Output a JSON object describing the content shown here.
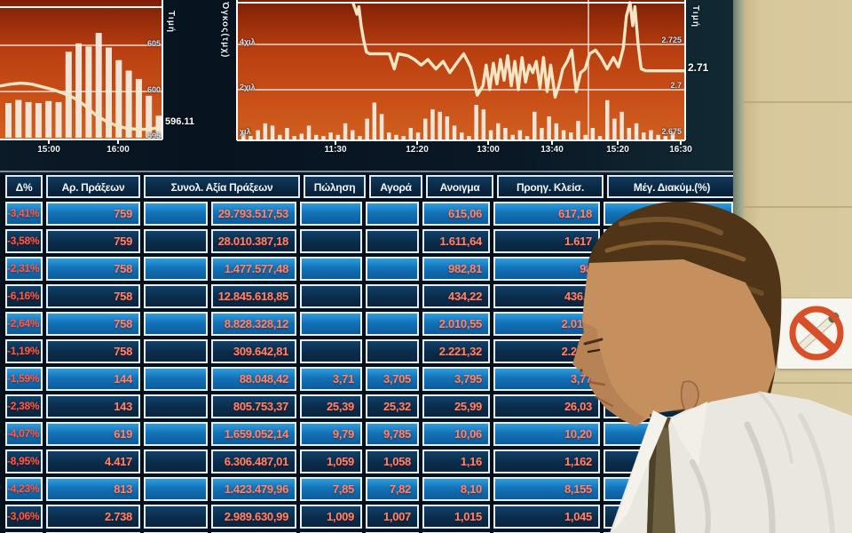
{
  "scene": "man walking past stock exchange display board",
  "board": {
    "table": {
      "headers": [
        "Δ%",
        "Αρ. Πράξεων",
        "Συνολ. Αξία Πράξεων",
        "Πώληση",
        "Αγορά",
        "Ανοιγμα",
        "Προηγ. Κλείσ.",
        "Μέγ. Διακύμ.(%)"
      ],
      "rows": [
        [
          "-3,41%",
          "759",
          "29.793.517,53",
          "",
          "",
          "615,06",
          "617,18",
          ""
        ],
        [
          "-3,58%",
          "759",
          "28.010.387,18",
          "",
          "",
          "1.611,64",
          "1.617",
          ""
        ],
        [
          "-2,31%",
          "758",
          "1.477.577,48",
          "",
          "",
          "982,81",
          "98",
          ""
        ],
        [
          "-6,16%",
          "758",
          "12.845.618,85",
          "",
          "",
          "434,22",
          "436,7",
          ""
        ],
        [
          "-2,64%",
          "758",
          "8.828.328,12",
          "",
          "",
          "2.010,55",
          "2.013,",
          ""
        ],
        [
          "-1,19%",
          "758",
          "309.642,81",
          "",
          "",
          "2.221,32",
          "2.223,",
          ""
        ],
        [
          "-1,59%",
          "144",
          "88.048,42",
          "3,71",
          "3,705",
          "3,795",
          "3,77",
          ""
        ],
        [
          "-2,38%",
          "143",
          "805.753,37",
          "25,39",
          "25,32",
          "25,99",
          "26,03",
          ""
        ],
        [
          "-4,07%",
          "619",
          "1.659.052,14",
          "9,79",
          "9,785",
          "10,06",
          "10,20",
          ""
        ],
        [
          "-8,95%",
          "4.417",
          "6.306.487,01",
          "1,059",
          "1,058",
          "1,16",
          "1,162",
          ""
        ],
        [
          "-4,23%",
          "813",
          "1.423.479,96",
          "7,85",
          "7,82",
          "8,10",
          "8,155",
          ""
        ],
        [
          "-3,06%",
          "2.738",
          "2.989.630,99",
          "1,009",
          "1,007",
          "1,015",
          "1,045",
          ""
        ],
        [
          "",
          "",
          "",
          "",
          "",
          "",
          "",
          ""
        ]
      ]
    }
  },
  "chart_data": [
    {
      "id": "index-intraday-chart",
      "type": "bar+line",
      "title_right_axis": "Τιμή",
      "x_ticks": [
        "15:00",
        "16:00"
      ],
      "y_ticks": [
        "605",
        "600",
        "595"
      ],
      "last_value_label": "596.11",
      "line_values": [
        600.6,
        600.8,
        600.9,
        600.8,
        600.5,
        600.2,
        599.8,
        599.3,
        598.5,
        597.5,
        596.8,
        596.3,
        596.0,
        595.9,
        595.9,
        596.1
      ],
      "bar_heights_rel": [
        0.33,
        0.36,
        0.34,
        0.33,
        0.35,
        0.34,
        0.82,
        0.9,
        0.87,
        1.0,
        0.86,
        0.74,
        0.64,
        0.56,
        0.4,
        0.21
      ],
      "ylim": [
        595,
        605
      ]
    },
    {
      "id": "stock-intraday-chart",
      "type": "line+bar",
      "title_left_axis": "Όγκος(τμχ)",
      "title_right_axis": "Τιμή",
      "x_ticks": [
        "11:30",
        "12:20",
        "13:00",
        "13:40",
        "15:20",
        "16:30"
      ],
      "y_ticks_right": [
        "2.725",
        "2.7",
        "2.675"
      ],
      "y_ticks_left": [
        "4χιλ",
        "2χιλ",
        "χιλ"
      ],
      "last_value_label": "2.71",
      "ylim_right": [
        2.675,
        2.725
      ],
      "line_points": [
        [
          0.259,
          2.747
        ],
        [
          0.268,
          2.741
        ],
        [
          0.272,
          2.745
        ],
        [
          0.277,
          2.735
        ],
        [
          0.283,
          2.727
        ],
        [
          0.289,
          2.721
        ],
        [
          0.296,
          2.72
        ],
        [
          0.32,
          2.72
        ],
        [
          0.34,
          2.72
        ],
        [
          0.351,
          2.712
        ],
        [
          0.36,
          2.72
        ],
        [
          0.381,
          2.719
        ],
        [
          0.396,
          2.717
        ],
        [
          0.411,
          2.714
        ],
        [
          0.426,
          2.717
        ],
        [
          0.444,
          2.712
        ],
        [
          0.46,
          2.716
        ],
        [
          0.475,
          2.71
        ],
        [
          0.49,
          2.715
        ],
        [
          0.506,
          2.72
        ],
        [
          0.521,
          2.713
        ],
        [
          0.529,
          2.706
        ],
        [
          0.536,
          2.698
        ],
        [
          0.549,
          2.703
        ],
        [
          0.556,
          2.714
        ],
        [
          0.564,
          2.701
        ],
        [
          0.572,
          2.715
        ],
        [
          0.58,
          2.704
        ],
        [
          0.588,
          2.717
        ],
        [
          0.596,
          2.706
        ],
        [
          0.604,
          2.719
        ],
        [
          0.612,
          2.703
        ],
        [
          0.62,
          2.716
        ],
        [
          0.628,
          2.701
        ],
        [
          0.636,
          2.718
        ],
        [
          0.644,
          2.705
        ],
        [
          0.652,
          2.714
        ],
        [
          0.66,
          2.71
        ],
        [
          0.668,
          2.716
        ],
        [
          0.676,
          2.702
        ],
        [
          0.684,
          2.718
        ],
        [
          0.692,
          2.7
        ],
        [
          0.7,
          2.714
        ],
        [
          0.71,
          2.697
        ],
        [
          0.718,
          2.703
        ],
        [
          0.727,
          2.712
        ],
        [
          0.737,
          2.716
        ],
        [
          0.747,
          2.722
        ],
        [
          0.757,
          2.7
        ],
        [
          0.767,
          2.71
        ],
        [
          0.777,
          2.712
        ],
        [
          0.787,
          2.72
        ],
        [
          0.8,
          2.722
        ],
        [
          0.812,
          2.718
        ],
        [
          0.826,
          2.712
        ],
        [
          0.84,
          2.718
        ],
        [
          0.851,
          2.713
        ],
        [
          0.862,
          2.723
        ],
        [
          0.869,
          2.74
        ],
        [
          0.877,
          2.748
        ],
        [
          0.883,
          2.735
        ],
        [
          0.888,
          2.745
        ],
        [
          0.895,
          2.725
        ],
        [
          0.902,
          2.712
        ],
        [
          0.912,
          2.711
        ],
        [
          1.0,
          2.711
        ]
      ],
      "volume_bars_kchil": [
        0.3,
        0.15,
        0.4,
        0.7,
        0.6,
        0.2,
        0.5,
        0.15,
        0.25,
        0.6,
        0.2,
        0.15,
        0.3,
        0.2,
        0.7,
        0.4,
        0.15,
        0.9,
        1.6,
        1.1,
        0.3,
        0.2,
        0.15,
        0.5,
        0.3,
        0.9,
        1.3,
        1.2,
        1.0,
        0.6,
        0.3,
        0.15,
        1.5,
        1.3,
        0.4,
        0.7,
        0.5,
        0.2,
        0.4,
        0.15,
        1.2,
        0.5,
        1.0,
        0.7,
        0.4,
        0.3,
        0.8,
        0.2,
        0.5,
        0.15,
        1.7,
        0.9,
        1.2,
        0.5,
        0.7,
        0.3,
        0.4,
        0.2,
        0.15,
        0.3
      ]
    }
  ],
  "wall": {
    "sign": "no-smoking"
  },
  "colors": {
    "chart_red_top": "#8a2208",
    "chart_red": "#c44914",
    "chart_orange": "#d0601f",
    "bar_white": "#f2ede2",
    "line_cream": "#f4e6c4",
    "cell_blue_light": "#1f86cc",
    "cell_blue_dark": "#0a2c4a",
    "value_red": "#ff8468",
    "delta_red": "#ff5a44",
    "wall_beige": "#d7c79b",
    "sign_red": "#d8502a",
    "hair_brown": "#4f3418",
    "skin": "#c6905e",
    "shirt_white": "#e9e7df"
  }
}
